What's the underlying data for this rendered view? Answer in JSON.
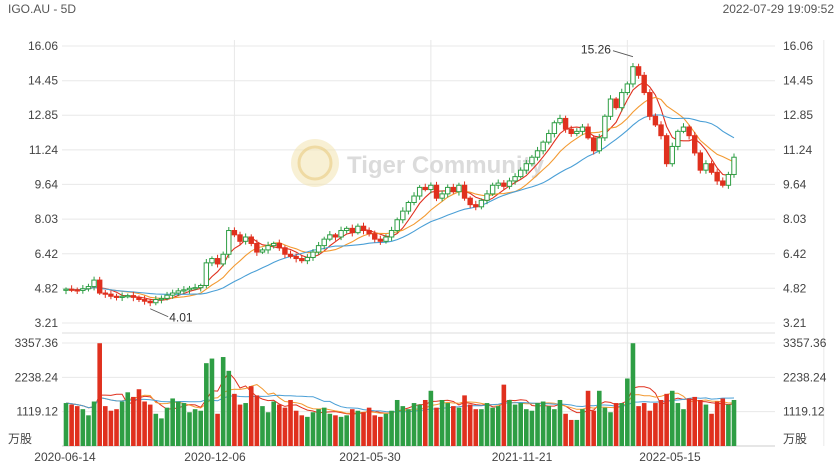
{
  "header": {
    "ticker": "IGO.AU - 5D",
    "timestamp": "2022-07-29 19:09:52"
  },
  "watermark": "Tiger Community",
  "colors": {
    "up": "#2e9e44",
    "down": "#e0301e",
    "ma5": "#e0301e",
    "ma10": "#f39a32",
    "ma20": "#4a9fd6",
    "grid": "#e8e8e8",
    "text": "#444444"
  },
  "chart_data": {
    "type": "candlestick",
    "price_ticks": [
      "16.06",
      "14.45",
      "12.85",
      "11.24",
      "9.64",
      "8.03",
      "6.42",
      "4.82",
      "3.21"
    ],
    "price_range": [
      3.21,
      16.06
    ],
    "volume_ticks": [
      "3357.36",
      "2238.24",
      "1119.12"
    ],
    "volume_unit": "万股",
    "volume_range": [
      0,
      3357.36
    ],
    "x_labels": [
      "2020-06-14",
      "2020-12-06",
      "2021-05-30",
      "2021-11-21",
      "2022-05-15"
    ],
    "annotations": {
      "high_label": "15.26",
      "low_label": "4.01"
    },
    "close_series": [
      4.78,
      4.75,
      4.72,
      4.8,
      4.9,
      5.2,
      4.6,
      4.55,
      4.45,
      4.4,
      4.45,
      4.48,
      4.4,
      4.3,
      4.22,
      4.15,
      4.3,
      4.35,
      4.5,
      4.6,
      4.7,
      4.75,
      4.82,
      4.85,
      4.95,
      6.0,
      6.2,
      5.95,
      6.4,
      7.5,
      7.3,
      7.0,
      7.2,
      6.9,
      6.5,
      6.6,
      6.8,
      6.9,
      6.7,
      6.4,
      6.3,
      6.2,
      6.1,
      6.25,
      6.5,
      6.8,
      7.1,
      7.3,
      7.2,
      7.5,
      7.6,
      7.4,
      7.7,
      7.5,
      7.35,
      7.1,
      7.0,
      7.2,
      7.5,
      8.0,
      8.4,
      8.8,
      9.1,
      9.5,
      9.4,
      9.6,
      9.0,
      9.2,
      9.5,
      9.3,
      9.6,
      9.0,
      8.7,
      8.6,
      8.9,
      9.2,
      9.6,
      9.7,
      9.55,
      9.8,
      10.0,
      10.3,
      10.6,
      10.9,
      11.2,
      11.6,
      12.0,
      12.5,
      12.7,
      12.2,
      12.0,
      12.1,
      12.3,
      11.8,
      11.2,
      11.8,
      12.8,
      13.6,
      13.2,
      13.9,
      14.3,
      15.1,
      14.7,
      13.9,
      12.8,
      12.4,
      11.9,
      10.6,
      11.4,
      12.1,
      12.3,
      11.9,
      11.1,
      10.3,
      10.6,
      10.2,
      9.8,
      9.6,
      10.1,
      10.9
    ],
    "volume_bars": [
      1400,
      1350,
      1300,
      1200,
      1000,
      1450,
      3350,
      1300,
      1150,
      1200,
      1450,
      1750,
      1600,
      1850,
      1450,
      1350,
      1050,
      900,
      1250,
      1550,
      1450,
      1400,
      1100,
      1200,
      1150,
      2700,
      2850,
      1050,
      2900,
      2450,
      1700,
      1350,
      1400,
      1950,
      1650,
      1300,
      1100,
      1450,
      1350,
      1250,
      1500,
      1150,
      1000,
      950,
      1100,
      1200,
      1250,
      1050,
      1000,
      950,
      1000,
      1200,
      1150,
      1100,
      1250,
      1000,
      950,
      1050,
      1150,
      1500,
      1300,
      1200,
      1400,
      1350,
      1500,
      1800,
      1250,
      1500,
      1400,
      1300,
      1250,
      1650,
      1350,
      1200,
      1200,
      1400,
      1250,
      1300,
      2000,
      1500,
      1350,
      1400,
      1200,
      1150,
      1400,
      1450,
      1300,
      1200,
      1500,
      1050,
      850,
      850,
      1200,
      1800,
      1150,
      1800,
      1250,
      1100,
      1400,
      1400,
      2200,
      3350,
      1300,
      1400,
      1150,
      1400,
      1500,
      1700,
      1800,
      1400,
      1200,
      1550,
      1600,
      1500,
      1350,
      1050,
      1450,
      1550,
      1350,
      1500
    ]
  }
}
